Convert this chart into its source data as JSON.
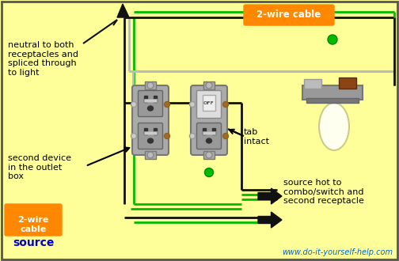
{
  "bg_color": "#FFFF99",
  "border_color": "#555555",
  "source_url": "www.do-it-yourself-help.com",
  "labels": {
    "neutral": "neutral to both\nreceptacles and\nspliced through\nto light",
    "second_device": "second device\nin the outlet\nbox",
    "tab_intact": "tab\nintact",
    "source_hot": "source hot to\ncombo/switch and\nsecond receptacle",
    "cable_top": "2-wire cable",
    "cable_bottom": "2-wire\ncable",
    "source": "source"
  },
  "colors": {
    "black_wire": "#111111",
    "green_wire": "#00BB00",
    "gray_wire": "#BBBBBB",
    "outlet_body": "#AAAAAA",
    "outlet_face": "#999999",
    "outlet_hole": "#333333",
    "screw_gold": "#AA6622",
    "screw_silver": "#CCCCCC",
    "screw_green": "#228B22",
    "switch_face": "#DDDDDD",
    "toggle_face": "#EEEEEE",
    "fixture_gray": "#888888",
    "fixture_gray2": "#AAAAAA",
    "fixture_brown": "#8B4513",
    "bulb_fill": "#FFFFF0",
    "orange_bg": "#FF8800",
    "white_text": "#FFFFFF",
    "blue_text": "#0000CC",
    "cyan_text": "#0066CC",
    "black": "#111111",
    "green_dot": "#00BB00"
  }
}
